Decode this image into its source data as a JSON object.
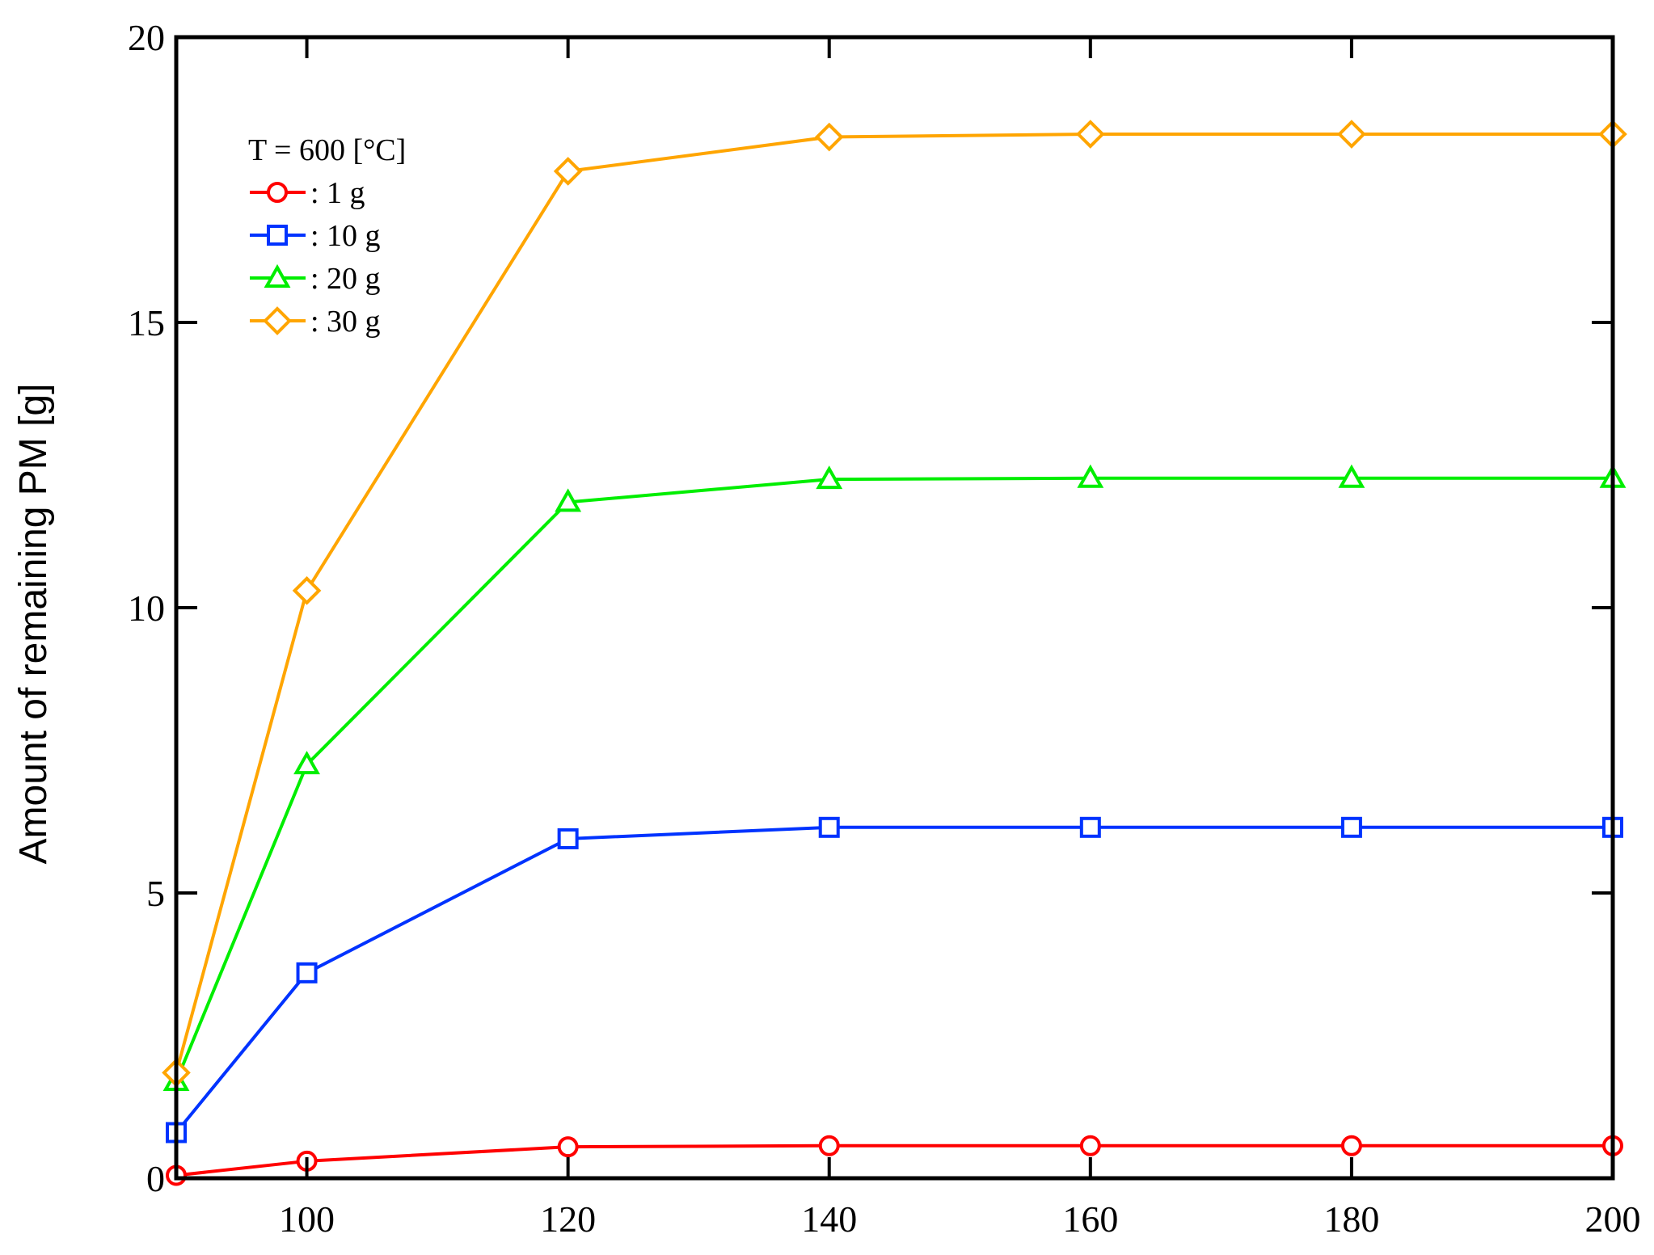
{
  "chart_data": {
    "type": "line",
    "title": "",
    "xlabel": "",
    "ylabel": "Amount of remaining PM [g]",
    "xlim": [
      90,
      200
    ],
    "ylim": [
      0,
      20
    ],
    "x_ticks": [
      100,
      120,
      140,
      160,
      180,
      200
    ],
    "y_ticks": [
      0,
      5,
      10,
      15,
      20
    ],
    "grid": false,
    "legend": {
      "title": "T = 600 [°C]",
      "placement": "top-left"
    },
    "x": [
      90,
      100,
      120,
      140,
      160,
      180,
      200
    ],
    "series": [
      {
        "name": ": 1 g",
        "color": "#ff0000",
        "marker": "circle",
        "values": [
          0.05,
          0.3,
          0.55,
          0.57,
          0.57,
          0.57,
          0.57
        ]
      },
      {
        "name": ": 10 g",
        "color": "#0033ff",
        "marker": "square",
        "values": [
          0.8,
          3.6,
          5.95,
          6.15,
          6.15,
          6.15,
          6.15
        ]
      },
      {
        "name": ": 20 g",
        "color": "#00ee00",
        "marker": "triangle",
        "values": [
          1.7,
          7.25,
          11.85,
          12.25,
          12.27,
          12.27,
          12.27
        ]
      },
      {
        "name": ": 30 g",
        "color": "#ffa500",
        "marker": "diamond",
        "values": [
          1.85,
          10.3,
          17.65,
          18.25,
          18.3,
          18.3,
          18.3
        ]
      }
    ]
  }
}
